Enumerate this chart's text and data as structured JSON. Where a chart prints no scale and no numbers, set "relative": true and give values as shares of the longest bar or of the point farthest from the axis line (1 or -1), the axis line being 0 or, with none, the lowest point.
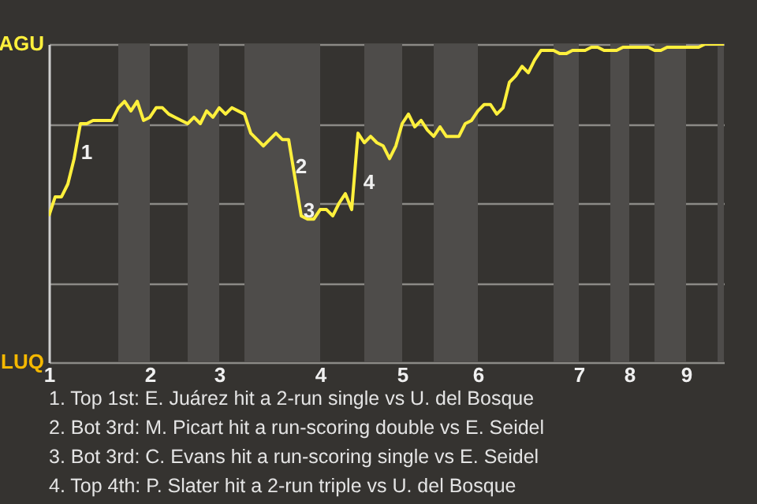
{
  "chart_data": {
    "type": "line",
    "relative": true,
    "categories": [
      "1",
      null,
      null,
      null,
      null,
      null,
      null,
      null,
      null,
      null,
      null,
      null,
      null,
      null,
      null,
      null,
      "2",
      null,
      null,
      null,
      null,
      null,
      null,
      null,
      null,
      null,
      null,
      "3",
      null,
      null,
      null,
      null,
      null,
      null,
      null,
      null,
      null,
      null,
      null,
      null,
      null,
      null,
      null,
      "4",
      null,
      null,
      null,
      null,
      null,
      null,
      null,
      null,
      null,
      null,
      null,
      null,
      "5",
      null,
      null,
      null,
      null,
      null,
      null,
      null,
      null,
      null,
      null,
      null,
      "6",
      null,
      null,
      null,
      null,
      null,
      null,
      null,
      null,
      null,
      null,
      null,
      null,
      null,
      null,
      null,
      "7",
      null,
      null,
      null,
      null,
      null,
      null,
      null,
      "8",
      null,
      null,
      null,
      null,
      null,
      null,
      null,
      null,
      "9",
      null,
      null,
      null,
      null,
      null,
      null
    ],
    "series": [
      {
        "color": "#fff03c",
        "values": [
          0.46,
          0.52,
          0.52,
          0.56,
          0.64,
          0.75,
          0.75,
          0.76,
          0.76,
          0.76,
          0.76,
          0.8,
          0.82,
          0.79,
          0.82,
          0.76,
          0.77,
          0.8,
          0.8,
          0.78,
          0.77,
          0.76,
          0.75,
          0.77,
          0.75,
          0.79,
          0.77,
          0.8,
          0.78,
          0.8,
          0.79,
          0.78,
          0.72,
          0.7,
          0.68,
          0.7,
          0.72,
          0.7,
          0.7,
          0.58,
          0.46,
          0.45,
          0.45,
          0.48,
          0.48,
          0.46,
          0.5,
          0.53,
          0.48,
          0.72,
          0.69,
          0.71,
          0.69,
          0.68,
          0.64,
          0.68,
          0.75,
          0.78,
          0.74,
          0.76,
          0.73,
          0.71,
          0.74,
          0.71,
          0.71,
          0.71,
          0.75,
          0.76,
          0.79,
          0.81,
          0.81,
          0.78,
          0.8,
          0.88,
          0.9,
          0.93,
          0.91,
          0.95,
          0.98,
          0.98,
          0.98,
          0.97,
          0.97,
          0.98,
          0.98,
          0.98,
          0.99,
          0.99,
          0.98,
          0.98,
          0.98,
          0.99,
          0.99,
          0.99,
          0.99,
          0.99,
          0.98,
          0.98,
          0.99,
          0.99,
          0.99,
          0.99,
          0.99,
          0.99,
          1,
          1,
          1,
          1
        ]
      }
    ],
    "grid": "y",
    "annotations": [
      "AGU",
      "LUQ",
      "1",
      "2",
      "3",
      "4",
      "1. Top 1st: E. Juárez hit a 2-run single vs U. del Bosque",
      "2. Bot 3rd: M. Picart hit a run-scoring double vs E. Seidel",
      "3. Bot 3rd: C. Evans hit a run-scoring single vs E. Seidel",
      "4. Top 4th: P. Slater hit a 2-run triple vs U. del Bosque"
    ]
  }
}
